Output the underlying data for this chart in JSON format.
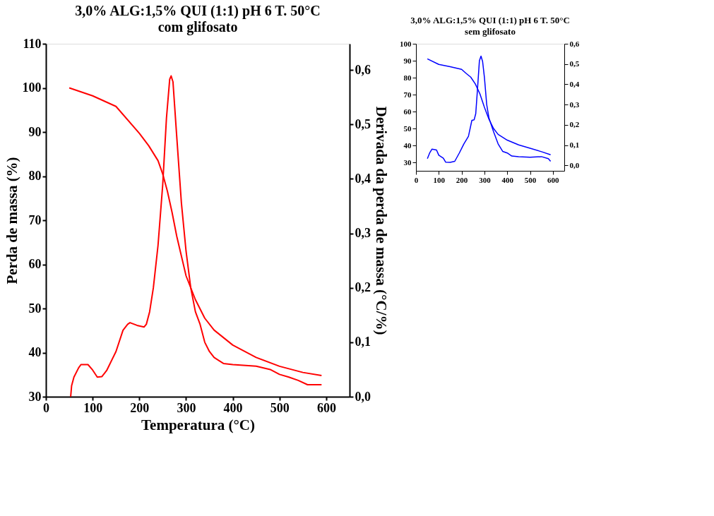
{
  "chart_data": [
    {
      "type": "line",
      "title": "3,0% ALG:1,5% QUI (1:1) pH 6 T. 50°C",
      "subtitle": "com glifosato",
      "xlabel": "Temperatura (°C)",
      "ylabel": "Perda de massa (%)",
      "y2label": "Derivada da perda de massa (°C/%)",
      "xlim": [
        0,
        650
      ],
      "xticks": [
        0,
        100,
        200,
        300,
        400,
        500,
        600
      ],
      "ylim": [
        30,
        110
      ],
      "yticks": [
        30,
        40,
        50,
        60,
        70,
        80,
        90,
        100,
        110
      ],
      "y2lim": [
        0,
        0.648
      ],
      "y2ticks": [
        {
          "value": 0,
          "label": "0,0"
        },
        {
          "value": 0.1,
          "label": "0,1"
        },
        {
          "value": 0.2,
          "label": "0,2"
        },
        {
          "value": 0.3,
          "label": "0,3"
        },
        {
          "value": 0.4,
          "label": "0,4"
        },
        {
          "value": 0.5,
          "label": "0,5"
        },
        {
          "value": 0.6,
          "label": "0,6"
        }
      ],
      "marker": "none",
      "line_style": "solid",
      "series": [
        {
          "color": "#ff0000",
          "x": [
            50,
            100,
            150,
            200,
            220,
            240,
            250,
            260,
            270,
            280,
            300,
            320,
            340,
            360,
            400,
            450,
            500,
            550,
            590
          ],
          "values": [
            100,
            98.2,
            95.8,
            89.7,
            86.9,
            83.5,
            80.5,
            76.6,
            71.8,
            66.4,
            57.4,
            52,
            47.8,
            45.1,
            41.7,
            38.9,
            36.9,
            35.5,
            34.8
          ]
        },
        {
          "color": "#ff0000",
          "axis": "y2",
          "x": [
            53,
            55,
            60,
            70,
            75,
            90,
            100,
            110,
            120,
            130,
            150,
            165,
            175,
            180,
            195,
            210,
            215,
            222,
            230,
            240,
            250,
            258,
            265,
            268,
            272,
            280,
            290,
            300,
            310,
            320,
            330,
            340,
            350,
            360,
            380,
            400,
            450,
            480,
            500,
            520,
            540,
            560,
            590
          ],
          "values": [
            0,
            0.02,
            0.036,
            0.053,
            0.059,
            0.059,
            0.049,
            0.036,
            0.037,
            0.048,
            0.083,
            0.122,
            0.133,
            0.136,
            0.131,
            0.128,
            0.133,
            0.156,
            0.2,
            0.278,
            0.389,
            0.511,
            0.583,
            0.589,
            0.578,
            0.478,
            0.356,
            0.267,
            0.2,
            0.156,
            0.133,
            0.1,
            0.083,
            0.072,
            0.061,
            0.059,
            0.056,
            0.05,
            0.041,
            0.036,
            0.03,
            0.022,
            0.022
          ]
        }
      ]
    },
    {
      "type": "line",
      "title": "3,0% ALG:1,5% QUI (1:1) pH 6 T. 50°C",
      "subtitle": "sem glifosato",
      "xlim": [
        0,
        650
      ],
      "xticks": [
        0,
        100,
        200,
        300,
        400,
        500,
        600
      ],
      "ylim": [
        25,
        100
      ],
      "yticks": [
        30,
        40,
        50,
        60,
        70,
        80,
        90,
        100
      ],
      "y2lim": [
        -0.027,
        0.6
      ],
      "y2ticks": [
        {
          "value": 0,
          "label": "0,0"
        },
        {
          "value": 0.1,
          "label": "0,1"
        },
        {
          "value": 0.2,
          "label": "0,2"
        },
        {
          "value": 0.3,
          "label": "0,3"
        },
        {
          "value": 0.4,
          "label": "0,4"
        },
        {
          "value": 0.5,
          "label": "0,5"
        },
        {
          "value": 0.6,
          "label": "0,6"
        }
      ],
      "marker": "none",
      "line_style": "solid",
      "series": [
        {
          "color": "#0000ff",
          "x": [
            50,
            100,
            150,
            200,
            220,
            240,
            260,
            280,
            300,
            320,
            340,
            360,
            400,
            450,
            500,
            550,
            590
          ],
          "values": [
            91.1,
            87.8,
            86.5,
            84.9,
            82.5,
            80.3,
            76.3,
            70.5,
            62.5,
            55.4,
            50,
            46.5,
            43.1,
            40.3,
            38.3,
            36.3,
            34.5
          ]
        },
        {
          "color": "#0000ff",
          "axis": "y2",
          "x": [
            50,
            60,
            70,
            90,
            100,
            120,
            130,
            150,
            170,
            190,
            210,
            230,
            245,
            255,
            262,
            270,
            278,
            285,
            292,
            300,
            310,
            320,
            340,
            360,
            380,
            400,
            420,
            450,
            500,
            550,
            580,
            590
          ],
          "values": [
            0.033,
            0.061,
            0.08,
            0.076,
            0.05,
            0.035,
            0.016,
            0.015,
            0.02,
            0.061,
            0.106,
            0.143,
            0.222,
            0.225,
            0.255,
            0.382,
            0.516,
            0.539,
            0.513,
            0.434,
            0.3,
            0.233,
            0.166,
            0.106,
            0.069,
            0.061,
            0.046,
            0.043,
            0.04,
            0.043,
            0.033,
            0.02
          ]
        }
      ]
    }
  ]
}
